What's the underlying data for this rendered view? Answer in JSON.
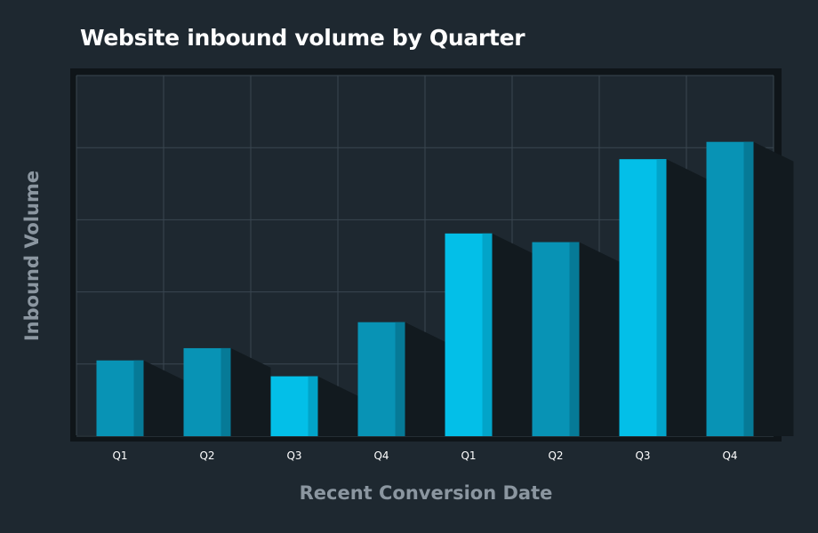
{
  "title": "Website inbound volume by Quarter",
  "chart_data": {
    "type": "bar",
    "title": "Website inbound volume by Quarter",
    "xlabel": "Recent Conversion Date",
    "ylabel": "Inbound Volume",
    "categories": [
      "Q1",
      "Q2",
      "Q3",
      "Q4",
      "Q1",
      "Q2",
      "Q3",
      "Q4"
    ],
    "values": [
      1.05,
      1.22,
      0.83,
      1.58,
      2.81,
      2.69,
      3.84,
      4.08
    ],
    "ylim": [
      0,
      5
    ],
    "grid": true,
    "tick_labels_y": false,
    "colors": {
      "bar_a": "#0893b5",
      "bar_a_edge": "#067a97",
      "bar_b": "#03bfe8",
      "bar_b_edge": "#02a4c9",
      "shadow": "#121a1f",
      "plot_bg": "#1e2830",
      "frame": "#0f1519",
      "grid": "#3a4650"
    },
    "bar_color_pattern": [
      "bar_a",
      "bar_a",
      "bar_b",
      "bar_a",
      "bar_b",
      "bar_a",
      "bar_b",
      "bar_a"
    ]
  }
}
